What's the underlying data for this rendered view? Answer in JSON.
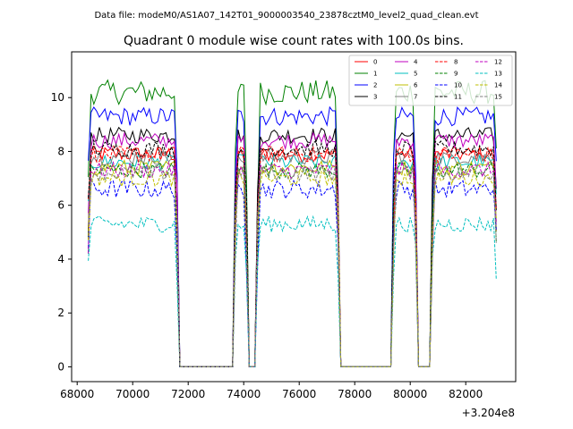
{
  "figure": {
    "suptitle": "Data file: modeM0/AS1A07_142T01_9000003540_23878cztM0_level2_quad_clean.evt"
  },
  "chart_data": {
    "type": "line",
    "title": "Quadrant 0 module wise count rates with 100.0s bins.",
    "xlabel": "",
    "ylabel": "",
    "x_offset_label": "+3.204e8",
    "xlim": [
      67800,
      83800
    ],
    "ylim": [
      -0.55,
      11.7
    ],
    "x_ticks": [
      68000,
      70000,
      72000,
      74000,
      76000,
      78000,
      80000,
      82000
    ],
    "x_tick_labels": [
      "68000",
      "70000",
      "72000",
      "74000",
      "76000",
      "78000",
      "80000",
      "82000"
    ],
    "y_ticks": [
      0,
      2,
      4,
      6,
      8,
      10
    ],
    "y_tick_labels": [
      "0",
      "2",
      "4",
      "6",
      "8",
      "10"
    ],
    "grid": false,
    "legend_position": "upper-right",
    "segments": [
      {
        "start": 68400,
        "end": 71600
      },
      {
        "start": 73700,
        "end": 74100
      },
      {
        "start": 74500,
        "end": 77400
      },
      {
        "start": 79400,
        "end": 80200
      },
      {
        "start": 80800,
        "end": 83100
      }
    ],
    "series": [
      {
        "name": "0",
        "color": "#ff0000",
        "dash": "solid",
        "level": 7.9,
        "amplitude": 0.3
      },
      {
        "name": "1",
        "color": "#008000",
        "dash": "solid",
        "level": 10.2,
        "amplitude": 0.45
      },
      {
        "name": "2",
        "color": "#0000ff",
        "dash": "solid",
        "level": 9.3,
        "amplitude": 0.35
      },
      {
        "name": "3",
        "color": "#000000",
        "dash": "solid",
        "level": 8.6,
        "amplitude": 0.3
      },
      {
        "name": "4",
        "color": "#bf00bf",
        "dash": "solid",
        "level": 8.4,
        "amplitude": 0.3
      },
      {
        "name": "5",
        "color": "#00bfbf",
        "dash": "solid",
        "level": 7.6,
        "amplitude": 0.3
      },
      {
        "name": "6",
        "color": "#bfbf00",
        "dash": "solid",
        "level": 7.4,
        "amplitude": 0.3
      },
      {
        "name": "7",
        "color": "#808080",
        "dash": "solid",
        "level": 7.8,
        "amplitude": 0.3
      },
      {
        "name": "8",
        "color": "#ff0000",
        "dash": "dashed",
        "level": 7.9,
        "amplitude": 0.3
      },
      {
        "name": "9",
        "color": "#008000",
        "dash": "dashed",
        "level": 7.3,
        "amplitude": 0.3
      },
      {
        "name": "10",
        "color": "#0000ff",
        "dash": "dashed",
        "level": 6.6,
        "amplitude": 0.35
      },
      {
        "name": "11",
        "color": "#000000",
        "dash": "dashed",
        "level": 8.1,
        "amplitude": 0.3
      },
      {
        "name": "12",
        "color": "#bf00bf",
        "dash": "dashed",
        "level": 7.3,
        "amplitude": 0.3
      },
      {
        "name": "13",
        "color": "#00bfbf",
        "dash": "dashed",
        "level": 5.3,
        "amplitude": 0.3
      },
      {
        "name": "14",
        "color": "#bfbf00",
        "dash": "dashed",
        "level": 7.0,
        "amplitude": 0.3
      },
      {
        "name": "15",
        "color": "#808080",
        "dash": "dashed",
        "level": 7.2,
        "amplitude": 0.3
      }
    ]
  }
}
